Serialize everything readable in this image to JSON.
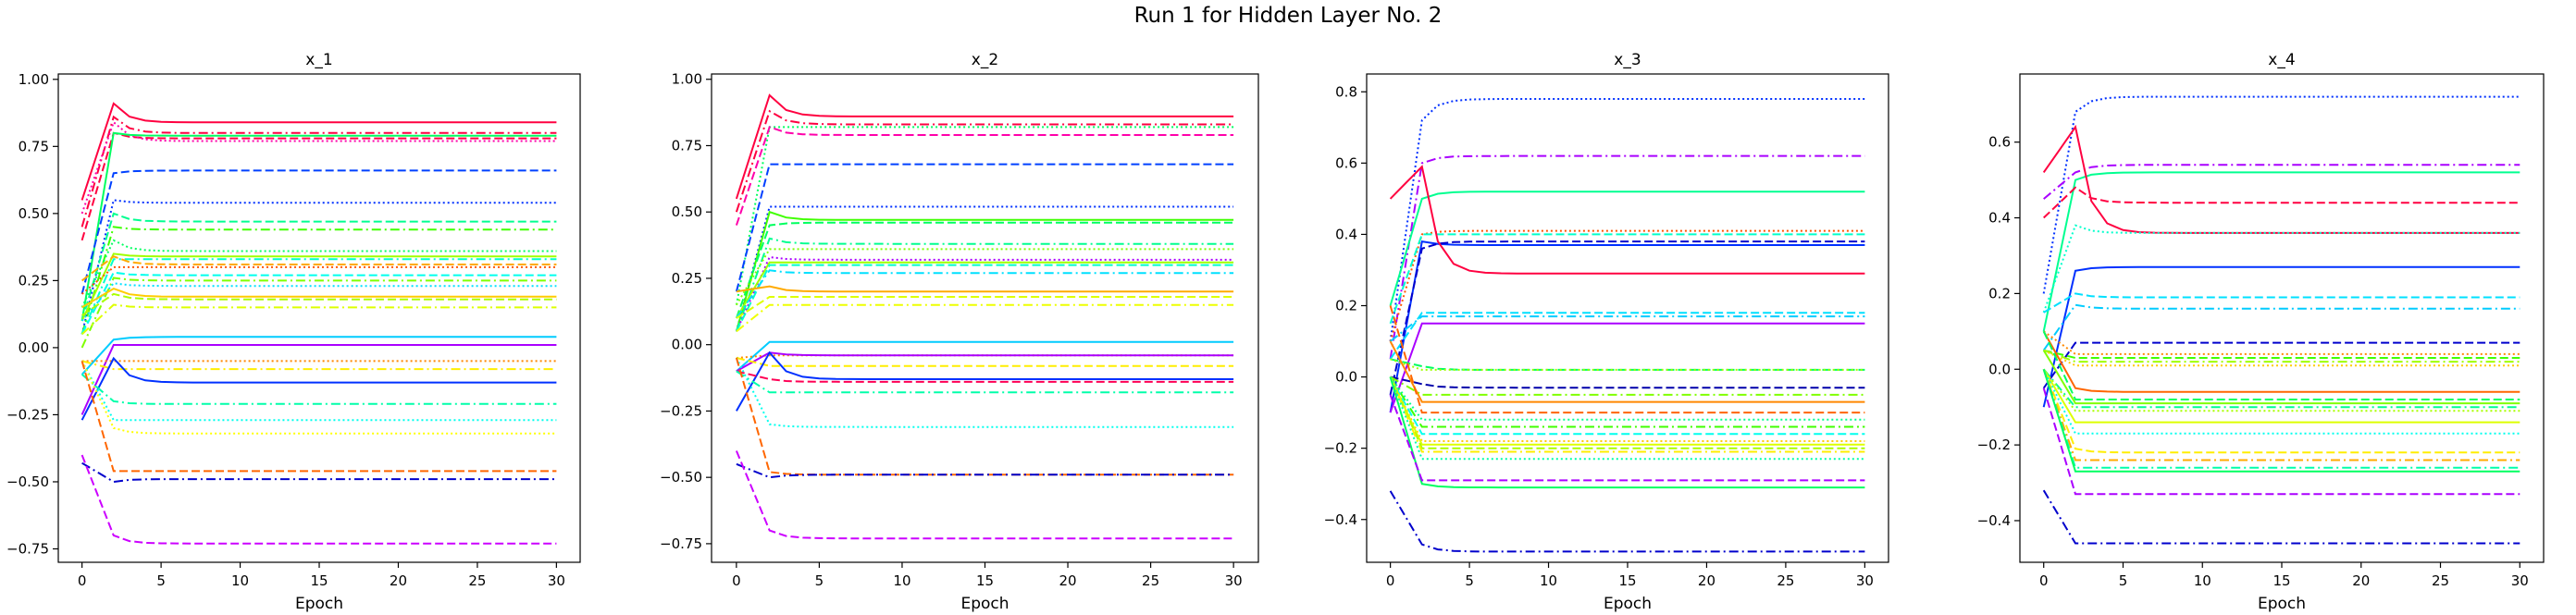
{
  "figure": {
    "title": "Run 1 for Hidden Layer No. 2"
  },
  "chart_data": [
    {
      "type": "line",
      "title": "x_1",
      "xlabel": "Epoch",
      "ylabel": "",
      "xlim": [
        -1.5,
        31.5
      ],
      "ylim": [
        -0.8,
        1.02
      ],
      "xticks": [
        0,
        5,
        10,
        15,
        20,
        25,
        30
      ],
      "yticks": [
        -0.75,
        -0.5,
        -0.25,
        0.0,
        0.25,
        0.5,
        0.75,
        1.0
      ],
      "ytick_labels": [
        "−0.75",
        "−0.50",
        "−0.25",
        "0.00",
        "0.25",
        "0.50",
        "0.75",
        "1.00"
      ],
      "grid": false,
      "series": [
        {
          "color": "#ff0040",
          "dash": "solid",
          "start": 0.55,
          "peak": 0.91,
          "final": 0.84
        },
        {
          "color": "#ff0040",
          "dash": "dashdot",
          "start": 0.45,
          "peak": 0.86,
          "final": 0.8
        },
        {
          "color": "#ff0040",
          "dash": "dashed",
          "start": 0.4,
          "peak": 0.8,
          "final": 0.78
        },
        {
          "color": "#ff00aa",
          "dash": "dotted",
          "start": 0.5,
          "peak": 0.84,
          "final": 0.77
        },
        {
          "color": "#00ff60",
          "dash": "solid",
          "start": 0.1,
          "peak": 0.8,
          "final": 0.79
        },
        {
          "color": "#0040ff",
          "dash": "dashed",
          "start": 0.2,
          "peak": 0.65,
          "final": 0.66
        },
        {
          "color": "#0030ff",
          "dash": "dotted",
          "start": 0.05,
          "peak": 0.55,
          "final": 0.54
        },
        {
          "color": "#00ff90",
          "dash": "dashed",
          "start": 0.1,
          "peak": 0.5,
          "final": 0.47
        },
        {
          "color": "#40ff00",
          "dash": "dashdot",
          "start": 0.05,
          "peak": 0.45,
          "final": 0.44
        },
        {
          "color": "#00ff60",
          "dash": "dotted",
          "start": 0.15,
          "peak": 0.4,
          "final": 0.36
        },
        {
          "color": "#a0ff00",
          "dash": "solid",
          "start": 0.1,
          "peak": 0.35,
          "final": 0.34
        },
        {
          "color": "#00ffcc",
          "dash": "dashdot",
          "start": 0.05,
          "peak": 0.33,
          "final": 0.33
        },
        {
          "color": "#ffaa00",
          "dash": "dashed",
          "start": 0.25,
          "peak": 0.34,
          "final": 0.31
        },
        {
          "color": "#ff5500",
          "dash": "dotted",
          "start": 0.2,
          "peak": 0.3,
          "final": 0.3
        },
        {
          "color": "#00ffee",
          "dash": "dashed",
          "start": 0.05,
          "peak": 0.28,
          "final": 0.27
        },
        {
          "color": "#80ff00",
          "dash": "dashdot",
          "start": 0.0,
          "peak": 0.26,
          "final": 0.25
        },
        {
          "color": "#00e0ff",
          "dash": "dotted",
          "start": 0.1,
          "peak": 0.24,
          "final": 0.23
        },
        {
          "color": "#ffcc00",
          "dash": "solid",
          "start": 0.15,
          "peak": 0.22,
          "final": 0.19
        },
        {
          "color": "#aaff00",
          "dash": "dashed",
          "start": 0.12,
          "peak": 0.2,
          "final": 0.18
        },
        {
          "color": "#ddff00",
          "dash": "dashdot",
          "start": 0.05,
          "peak": 0.16,
          "final": 0.15
        },
        {
          "color": "#00ccff",
          "dash": "solid",
          "start": -0.1,
          "peak": 0.03,
          "final": 0.04
        },
        {
          "color": "#aa00ff",
          "dash": "solid",
          "start": -0.25,
          "peak": 0.01,
          "final": 0.01
        },
        {
          "color": "#ff8800",
          "dash": "dotted",
          "start": -0.05,
          "peak": -0.05,
          "final": -0.05
        },
        {
          "color": "#ffee00",
          "dash": "dashdot",
          "start": -0.05,
          "peak": -0.08,
          "final": -0.08
        },
        {
          "color": "#0030ff",
          "dash": "solid",
          "start": -0.27,
          "peak": -0.04,
          "final": -0.13
        },
        {
          "color": "#00ffaa",
          "dash": "dashdot",
          "start": -0.1,
          "peak": -0.2,
          "final": -0.21
        },
        {
          "color": "#00ffee",
          "dash": "dotted",
          "start": -0.05,
          "peak": -0.27,
          "final": -0.27
        },
        {
          "color": "#ffff00",
          "dash": "dotted",
          "start": -0.05,
          "peak": -0.3,
          "final": -0.32
        },
        {
          "color": "#ff6600",
          "dash": "dashed",
          "start": -0.05,
          "peak": -0.46,
          "final": -0.46
        },
        {
          "color": "#0000cc",
          "dash": "dashdot",
          "start": -0.43,
          "peak": -0.5,
          "final": -0.49
        },
        {
          "color": "#cc00ff",
          "dash": "dashed",
          "start": -0.4,
          "peak": -0.7,
          "final": -0.73
        }
      ]
    },
    {
      "type": "line",
      "title": "x_2",
      "xlabel": "Epoch",
      "ylabel": "",
      "xlim": [
        -1.5,
        31.5
      ],
      "ylim": [
        -0.82,
        1.02
      ],
      "xticks": [
        0,
        5,
        10,
        15,
        20,
        25,
        30
      ],
      "yticks": [
        -0.75,
        -0.5,
        -0.25,
        0.0,
        0.25,
        0.5,
        0.75,
        1.0
      ],
      "ytick_labels": [
        "−0.75",
        "−0.50",
        "−0.25",
        "0.00",
        "0.25",
        "0.50",
        "0.75",
        "1.00"
      ],
      "grid": false,
      "series": [
        {
          "color": "#ff0040",
          "dash": "solid",
          "start": 0.55,
          "peak": 0.94,
          "final": 0.86
        },
        {
          "color": "#ff0040",
          "dash": "dashdot",
          "start": 0.5,
          "peak": 0.88,
          "final": 0.83
        },
        {
          "color": "#00ff60",
          "dash": "dotted",
          "start": 0.15,
          "peak": 0.82,
          "final": 0.82
        },
        {
          "color": "#ff00aa",
          "dash": "dashed",
          "start": 0.45,
          "peak": 0.82,
          "final": 0.79
        },
        {
          "color": "#0040ff",
          "dash": "dashed",
          "start": 0.2,
          "peak": 0.68,
          "final": 0.68
        },
        {
          "color": "#0030ff",
          "dash": "dotted",
          "start": 0.05,
          "peak": 0.52,
          "final": 0.52
        },
        {
          "color": "#40ff00",
          "dash": "solid",
          "start": 0.05,
          "peak": 0.5,
          "final": 0.47
        },
        {
          "color": "#00ff60",
          "dash": "dashed",
          "start": 0.1,
          "peak": 0.45,
          "final": 0.46
        },
        {
          "color": "#00ff90",
          "dash": "dashdot",
          "start": 0.05,
          "peak": 0.4,
          "final": 0.38
        },
        {
          "color": "#80ff00",
          "dash": "dotted",
          "start": 0.15,
          "peak": 0.36,
          "final": 0.36
        },
        {
          "color": "#aa00ff",
          "dash": "dotted",
          "start": 0.05,
          "peak": 0.33,
          "final": 0.32
        },
        {
          "color": "#a0ff00",
          "dash": "solid",
          "start": 0.1,
          "peak": 0.31,
          "final": 0.31
        },
        {
          "color": "#00ffcc",
          "dash": "dashed",
          "start": 0.05,
          "peak": 0.3,
          "final": 0.3
        },
        {
          "color": "#00e0ff",
          "dash": "dashdot",
          "start": 0.1,
          "peak": 0.28,
          "final": 0.27
        },
        {
          "color": "#ffaa00",
          "dash": "solid",
          "start": 0.2,
          "peak": 0.22,
          "final": 0.2
        },
        {
          "color": "#ddff00",
          "dash": "dashed",
          "start": 0.1,
          "peak": 0.18,
          "final": 0.18
        },
        {
          "color": "#eeff00",
          "dash": "dashdot",
          "start": 0.05,
          "peak": 0.15,
          "final": 0.15
        },
        {
          "color": "#00ccff",
          "dash": "solid",
          "start": -0.1,
          "peak": 0.01,
          "final": 0.01
        },
        {
          "color": "#ff8800",
          "dash": "dotted",
          "start": -0.05,
          "peak": -0.04,
          "final": -0.04
        },
        {
          "color": "#aa00ff",
          "dash": "solid",
          "start": -0.1,
          "peak": -0.03,
          "final": -0.04
        },
        {
          "color": "#ffee00",
          "dash": "dashed",
          "start": -0.05,
          "peak": -0.08,
          "final": -0.08
        },
        {
          "color": "#0030ff",
          "dash": "solid",
          "start": -0.25,
          "peak": -0.03,
          "final": -0.13
        },
        {
          "color": "#ff0055",
          "dash": "dashed",
          "start": -0.1,
          "peak": -0.13,
          "final": -0.14
        },
        {
          "color": "#00ffaa",
          "dash": "dashdot",
          "start": -0.1,
          "peak": -0.18,
          "final": -0.18
        },
        {
          "color": "#00ffee",
          "dash": "dotted",
          "start": -0.05,
          "peak": -0.3,
          "final": -0.31
        },
        {
          "color": "#ff6600",
          "dash": "dashed",
          "start": -0.05,
          "peak": -0.48,
          "final": -0.49
        },
        {
          "color": "#0000cc",
          "dash": "dashdot",
          "start": -0.45,
          "peak": -0.5,
          "final": -0.49
        },
        {
          "color": "#cc00ff",
          "dash": "dashed",
          "start": -0.4,
          "peak": -0.7,
          "final": -0.73
        }
      ]
    },
    {
      "type": "line",
      "title": "x_3",
      "xlabel": "Epoch",
      "ylabel": "",
      "xlim": [
        -1.5,
        31.5
      ],
      "ylim": [
        -0.52,
        0.85
      ],
      "xticks": [
        0,
        5,
        10,
        15,
        20,
        25,
        30
      ],
      "yticks": [
        -0.4,
        -0.2,
        0.0,
        0.2,
        0.4,
        0.6,
        0.8
      ],
      "ytick_labels": [
        "−0.4",
        "−0.2",
        "0.0",
        "0.2",
        "0.4",
        "0.6",
        "0.8"
      ],
      "grid": false,
      "series": [
        {
          "color": "#0030ff",
          "dash": "dotted",
          "start": 0.1,
          "peak": 0.72,
          "final": 0.78
        },
        {
          "color": "#aa00ff",
          "dash": "dashdot",
          "start": 0.05,
          "peak": 0.6,
          "final": 0.62
        },
        {
          "color": "#00ff90",
          "dash": "solid",
          "start": 0.2,
          "peak": 0.5,
          "final": 0.52
        },
        {
          "color": "#ff5500",
          "dash": "dotted",
          "start": 0.1,
          "peak": 0.4,
          "final": 0.41
        },
        {
          "color": "#00ffcc",
          "dash": "dashed",
          "start": 0.15,
          "peak": 0.4,
          "final": 0.4
        },
        {
          "color": "#0030ff",
          "dash": "solid",
          "start": -0.1,
          "peak": 0.38,
          "final": 0.37
        },
        {
          "color": "#0000cc",
          "dash": "dashed",
          "start": -0.05,
          "peak": 0.36,
          "final": 0.38
        },
        {
          "color": "#ff0040",
          "dash": "solid",
          "start": 0.5,
          "peak": 0.59,
          "final": 0.29
        },
        {
          "color": "#00e0ff",
          "dash": "dashed",
          "start": 0.05,
          "peak": 0.18,
          "final": 0.18
        },
        {
          "color": "#00ccff",
          "dash": "dashdot",
          "start": 0.1,
          "peak": 0.17,
          "final": 0.17
        },
        {
          "color": "#aa00ff",
          "dash": "solid",
          "start": -0.1,
          "peak": 0.15,
          "final": 0.15
        },
        {
          "color": "#00ff60",
          "dash": "dashed",
          "start": 0.05,
          "peak": 0.03,
          "final": 0.02
        },
        {
          "color": "#a0ff00",
          "dash": "dotted",
          "start": 0.05,
          "peak": 0.02,
          "final": 0.02
        },
        {
          "color": "#0000aa",
          "dash": "dashed",
          "start": 0.0,
          "peak": -0.02,
          "final": -0.03
        },
        {
          "color": "#80ff00",
          "dash": "dashdot",
          "start": 0.0,
          "peak": -0.05,
          "final": -0.05
        },
        {
          "color": "#ff8800",
          "dash": "solid",
          "start": 0.1,
          "peak": -0.07,
          "final": -0.07
        },
        {
          "color": "#ff6600",
          "dash": "dashed",
          "start": 0.2,
          "peak": -0.1,
          "final": -0.1
        },
        {
          "color": "#00ff90",
          "dash": "dotted",
          "start": 0.0,
          "peak": -0.12,
          "final": -0.12
        },
        {
          "color": "#40ff00",
          "dash": "dashdot",
          "start": 0.0,
          "peak": -0.14,
          "final": -0.14
        },
        {
          "color": "#00ffee",
          "dash": "dashed",
          "start": 0.0,
          "peak": -0.16,
          "final": -0.16
        },
        {
          "color": "#ffcc00",
          "dash": "dotted",
          "start": 0.0,
          "peak": -0.18,
          "final": -0.18
        },
        {
          "color": "#ddff00",
          "dash": "solid",
          "start": 0.0,
          "peak": -0.19,
          "final": -0.19
        },
        {
          "color": "#aaff00",
          "dash": "dashed",
          "start": 0.0,
          "peak": -0.2,
          "final": -0.2
        },
        {
          "color": "#ffee00",
          "dash": "dashdot",
          "start": 0.0,
          "peak": -0.21,
          "final": -0.21
        },
        {
          "color": "#00ffaa",
          "dash": "dotted",
          "start": 0.0,
          "peak": -0.23,
          "final": -0.23
        },
        {
          "color": "#00ff60",
          "dash": "solid",
          "start": 0.0,
          "peak": -0.3,
          "final": -0.31
        },
        {
          "color": "#aa00ff",
          "dash": "dashed",
          "start": -0.05,
          "peak": -0.29,
          "final": -0.29
        },
        {
          "color": "#0000cc",
          "dash": "dashdot",
          "start": -0.32,
          "peak": -0.47,
          "final": -0.49
        }
      ]
    },
    {
      "type": "line",
      "title": "x_4",
      "xlabel": "Epoch",
      "ylabel": "",
      "xlim": [
        -1.5,
        31.5
      ],
      "ylim": [
        -0.51,
        0.78
      ],
      "xticks": [
        0,
        5,
        10,
        15,
        20,
        25,
        30
      ],
      "yticks": [
        -0.4,
        -0.2,
        0.0,
        0.2,
        0.4,
        0.6
      ],
      "ytick_labels": [
        "−0.4",
        "−0.2",
        "0.0",
        "0.2",
        "0.4",
        "0.6"
      ],
      "grid": false,
      "series": [
        {
          "color": "#0030ff",
          "dash": "dotted",
          "start": 0.2,
          "peak": 0.68,
          "final": 0.72
        },
        {
          "color": "#aa00ff",
          "dash": "dashdot",
          "start": 0.45,
          "peak": 0.52,
          "final": 0.54
        },
        {
          "color": "#00ff90",
          "dash": "solid",
          "start": 0.1,
          "peak": 0.5,
          "final": 0.52
        },
        {
          "color": "#ff0040",
          "dash": "dashed",
          "start": 0.4,
          "peak": 0.48,
          "final": 0.44
        },
        {
          "color": "#ff0040",
          "dash": "solid",
          "start": 0.52,
          "peak": 0.64,
          "final": 0.36
        },
        {
          "color": "#00ffcc",
          "dash": "dotted",
          "start": 0.15,
          "peak": 0.38,
          "final": 0.36
        },
        {
          "color": "#0030ff",
          "dash": "solid",
          "start": -0.1,
          "peak": 0.26,
          "final": 0.27
        },
        {
          "color": "#00e0ff",
          "dash": "dashed",
          "start": 0.15,
          "peak": 0.2,
          "final": 0.19
        },
        {
          "color": "#00ccff",
          "dash": "dashdot",
          "start": 0.05,
          "peak": 0.17,
          "final": 0.16
        },
        {
          "color": "#0000cc",
          "dash": "dashed",
          "start": -0.05,
          "peak": 0.07,
          "final": 0.07
        },
        {
          "color": "#ff8800",
          "dash": "dotted",
          "start": 0.1,
          "peak": 0.04,
          "final": 0.04
        },
        {
          "color": "#40ff00",
          "dash": "dashed",
          "start": 0.05,
          "peak": 0.03,
          "final": 0.03
        },
        {
          "color": "#a0ff00",
          "dash": "dashdot",
          "start": 0.05,
          "peak": 0.02,
          "final": 0.02
        },
        {
          "color": "#ffcc00",
          "dash": "dotted",
          "start": 0.05,
          "peak": 0.01,
          "final": 0.01
        },
        {
          "color": "#ff6600",
          "dash": "solid",
          "start": 0.1,
          "peak": -0.05,
          "final": -0.06
        },
        {
          "color": "#00ff60",
          "dash": "dashed",
          "start": 0.1,
          "peak": -0.08,
          "final": -0.08
        },
        {
          "color": "#80ff00",
          "dash": "solid",
          "start": 0.05,
          "peak": -0.09,
          "final": -0.09
        },
        {
          "color": "#00ff90",
          "dash": "dashdot",
          "start": 0.0,
          "peak": -0.1,
          "final": -0.1
        },
        {
          "color": "#aaff00",
          "dash": "dotted",
          "start": 0.0,
          "peak": -0.11,
          "final": -0.11
        },
        {
          "color": "#ddff00",
          "dash": "solid",
          "start": 0.0,
          "peak": -0.14,
          "final": -0.14
        },
        {
          "color": "#00ffee",
          "dash": "dotted",
          "start": 0.0,
          "peak": -0.17,
          "final": -0.17
        },
        {
          "color": "#ffee00",
          "dash": "dashed",
          "start": 0.0,
          "peak": -0.21,
          "final": -0.22
        },
        {
          "color": "#ffaa00",
          "dash": "dashdot",
          "start": 0.0,
          "peak": -0.24,
          "final": -0.24
        },
        {
          "color": "#00ffaa",
          "dash": "dashdot",
          "start": 0.0,
          "peak": -0.26,
          "final": -0.26
        },
        {
          "color": "#00ff60",
          "dash": "solid",
          "start": 0.0,
          "peak": -0.27,
          "final": -0.27
        },
        {
          "color": "#aa00ff",
          "dash": "dashed",
          "start": -0.05,
          "peak": -0.33,
          "final": -0.33
        },
        {
          "color": "#0000cc",
          "dash": "dashdot",
          "start": -0.32,
          "peak": -0.46,
          "final": -0.46
        }
      ]
    }
  ]
}
